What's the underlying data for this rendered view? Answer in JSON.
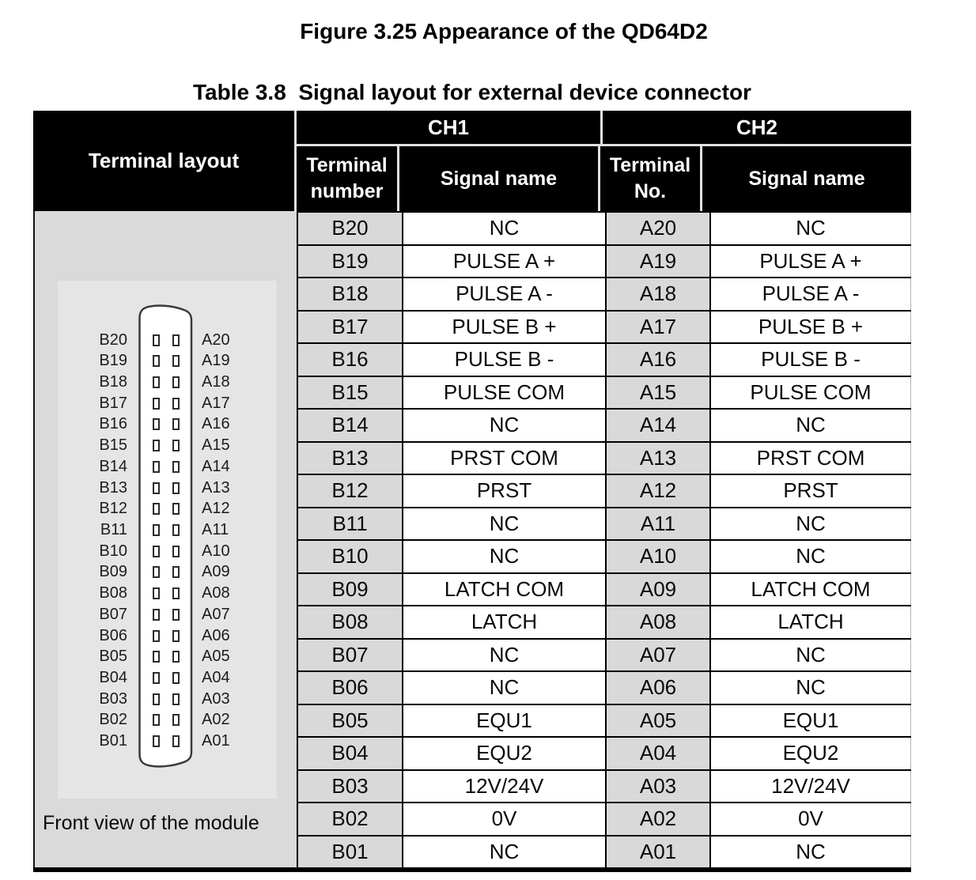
{
  "page": {
    "figure_title": "Figure 3.25 Appearance of the QD64D2",
    "table_title": "Table 3.8  Signal layout for external device connector"
  },
  "table": {
    "headers": {
      "terminal_layout": "Terminal layout",
      "ch1": "CH1",
      "ch2": "CH2",
      "ch1_terminal": {
        "line1": "Terminal",
        "line2": "number"
      },
      "ch2_terminal": {
        "line1": "Terminal",
        "line2": "No."
      },
      "signal_name": "Signal name"
    },
    "rows": [
      {
        "ch1_no": "B20",
        "ch1_signal": "NC",
        "ch2_no": "A20",
        "ch2_signal": "NC"
      },
      {
        "ch1_no": "B19",
        "ch1_signal": "PULSE A +",
        "ch2_no": "A19",
        "ch2_signal": "PULSE A +"
      },
      {
        "ch1_no": "B18",
        "ch1_signal": "PULSE A -",
        "ch2_no": "A18",
        "ch2_signal": "PULSE A -"
      },
      {
        "ch1_no": "B17",
        "ch1_signal": "PULSE B +",
        "ch2_no": "A17",
        "ch2_signal": "PULSE B +"
      },
      {
        "ch1_no": "B16",
        "ch1_signal": "PULSE B -",
        "ch2_no": "A16",
        "ch2_signal": "PULSE B -"
      },
      {
        "ch1_no": "B15",
        "ch1_signal": "PULSE COM",
        "ch2_no": "A15",
        "ch2_signal": "PULSE COM"
      },
      {
        "ch1_no": "B14",
        "ch1_signal": "NC",
        "ch2_no": "A14",
        "ch2_signal": "NC"
      },
      {
        "ch1_no": "B13",
        "ch1_signal": "PRST COM",
        "ch2_no": "A13",
        "ch2_signal": "PRST COM"
      },
      {
        "ch1_no": "B12",
        "ch1_signal": "PRST",
        "ch2_no": "A12",
        "ch2_signal": "PRST"
      },
      {
        "ch1_no": "B11",
        "ch1_signal": "NC",
        "ch2_no": "A11",
        "ch2_signal": "NC"
      },
      {
        "ch1_no": "B10",
        "ch1_signal": "NC",
        "ch2_no": "A10",
        "ch2_signal": "NC"
      },
      {
        "ch1_no": "B09",
        "ch1_signal": "LATCH COM",
        "ch2_no": "A09",
        "ch2_signal": "LATCH COM"
      },
      {
        "ch1_no": "B08",
        "ch1_signal": "LATCH",
        "ch2_no": "A08",
        "ch2_signal": "LATCH"
      },
      {
        "ch1_no": "B07",
        "ch1_signal": "NC",
        "ch2_no": "A07",
        "ch2_signal": "NC"
      },
      {
        "ch1_no": "B06",
        "ch1_signal": "NC",
        "ch2_no": "A06",
        "ch2_signal": "NC"
      },
      {
        "ch1_no": "B05",
        "ch1_signal": "EQU1",
        "ch2_no": "A05",
        "ch2_signal": "EQU1"
      },
      {
        "ch1_no": "B04",
        "ch1_signal": "EQU2",
        "ch2_no": "A04",
        "ch2_signal": "EQU2"
      },
      {
        "ch1_no": "B03",
        "ch1_signal": "12V/24V",
        "ch2_no": "A03",
        "ch2_signal": "12V/24V"
      },
      {
        "ch1_no": "B02",
        "ch1_signal": "0V",
        "ch2_no": "A02",
        "ch2_signal": "0V"
      },
      {
        "ch1_no": "B01",
        "ch1_signal": "NC",
        "ch2_no": "A01",
        "ch2_signal": "NC"
      }
    ]
  },
  "terminal_layout_diagram": {
    "caption": "Front view of the module",
    "left_pin_labels": [
      "B20",
      "B19",
      "B18",
      "B17",
      "B16",
      "B15",
      "B14",
      "B13",
      "B12",
      "B11",
      "B10",
      "B09",
      "B08",
      "B07",
      "B06",
      "B05",
      "B04",
      "B03",
      "B02",
      "B01"
    ],
    "right_pin_labels": [
      "A20",
      "A19",
      "A18",
      "A17",
      "A16",
      "A15",
      "A14",
      "A13",
      "A12",
      "A11",
      "A10",
      "A09",
      "A08",
      "A07",
      "A06",
      "A05",
      "A04",
      "A03",
      "A02",
      "A01"
    ]
  },
  "colors": {
    "header_bg": "#000000",
    "header_text": "#ffffff",
    "header_separator": "#e0e0e0",
    "terminal_cell_gray": "#d9d9d9",
    "layout_column_gray": "#dadada",
    "layout_panel_gray": "#e5e5e5",
    "border_black": "#000000"
  }
}
